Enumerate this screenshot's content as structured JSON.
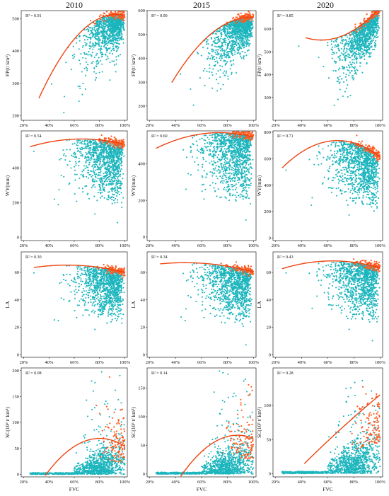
{
  "figure": {
    "column_titles": [
      "2010",
      "2015",
      "2020"
    ],
    "xlabel": "FVC",
    "colors": {
      "scatter_main": "#1cb5bd",
      "scatter_highlight": "#ff5a1f",
      "fit_line": "#ee4411",
      "frame": "#222222"
    }
  },
  "chart_data": [
    {
      "type": "scatter",
      "row": "FP",
      "year": "2010",
      "ylabel": "FP(t/ km²)",
      "r2_label": "R² = 0.91",
      "xlim": [
        18,
        102
      ],
      "ylim": [
        185,
        525
      ],
      "xticks": [
        "20%",
        "40%",
        "60%",
        "80%",
        "100%"
      ],
      "yticks": [
        200,
        300,
        400,
        500
      ],
      "scatter_mode": "up",
      "fit_x": [
        32,
        100
      ],
      "fit_coeffs": [
        -0.0695,
        12.95,
        -90
      ],
      "scatter_center_y": 390,
      "scatter_spread_y": 60
    },
    {
      "type": "scatter",
      "row": "FP",
      "year": "2015",
      "ylabel": "FP(t/ km²)",
      "r2_label": "R² = 0.90",
      "xlim": [
        18,
        102
      ],
      "ylim": [
        140,
        600
      ],
      "xticks": [
        "20%",
        "40%",
        "60%",
        "80%",
        "100%"
      ],
      "yticks": [
        200,
        300,
        400,
        500,
        600
      ],
      "scatter_mode": "up",
      "fit_x": [
        37,
        100
      ],
      "fit_coeffs": [
        -0.0735,
        14.42,
        -135
      ],
      "scatter_center_y": 430,
      "scatter_spread_y": 80
    },
    {
      "type": "scatter",
      "row": "FP",
      "year": "2020",
      "ylabel": "FP(t/ km²)",
      "r2_label": "R² = 0.85",
      "xlim": [
        18,
        102
      ],
      "ylim": [
        200,
        680
      ],
      "xticks": [
        "20%",
        "40%",
        "60%",
        "80%",
        "100%"
      ],
      "yticks": [
        300,
        400,
        500,
        600
      ],
      "scatter_mode": "up",
      "fit_x": [
        43,
        100
      ],
      "fit_coeffs": [
        0.0706,
        -7.77,
        765
      ],
      "scatter_center_y": 500,
      "scatter_spread_y": 80
    },
    {
      "type": "scatter",
      "row": "WY",
      "year": "2010",
      "ylabel": "WY(mm)",
      "r2_label": "R² = 0.54",
      "xlim": [
        18,
        102
      ],
      "ylim": [
        -20,
        615
      ],
      "xticks": [
        "20%",
        "40%",
        "60%",
        "80%",
        "100%"
      ],
      "yticks": [
        0,
        200,
        400
      ],
      "scatter_mode": "down",
      "fit_x": [
        25,
        100
      ],
      "fit_coeffs": [
        -0.0267,
        3.523,
        452
      ],
      "scatter_center_y": 300,
      "scatter_spread_y": 110
    },
    {
      "type": "scatter",
      "row": "WY",
      "year": "2015",
      "ylabel": "WY(mm)",
      "r2_label": "R² = 0.60",
      "xlim": [
        18,
        102
      ],
      "ylim": [
        -20,
        580
      ],
      "xticks": [
        "20%",
        "40%",
        "60%",
        "80%",
        "100%"
      ],
      "yticks": [
        0,
        200,
        400
      ],
      "scatter_mode": "down",
      "fit_x": [
        25,
        100
      ],
      "fit_coeffs": [
        -0.0358,
        5.29,
        375
      ],
      "scatter_center_y": 300,
      "scatter_spread_y": 110
    },
    {
      "type": "scatter",
      "row": "WY",
      "year": "2020",
      "ylabel": "WY(mm)",
      "r2_label": "R² = 0.71",
      "xlim": [
        18,
        102
      ],
      "ylim": [
        -20,
        810
      ],
      "xticks": [
        "20%",
        "40%",
        "60%",
        "80%",
        "100%"
      ],
      "yticks": [
        0,
        200,
        400,
        600,
        800
      ],
      "scatter_mode": "down",
      "fit_x": [
        25,
        100
      ],
      "fit_coeffs": [
        -0.115,
        15.51,
        214
      ],
      "scatter_center_y": 400,
      "scatter_spread_y": 150
    },
    {
      "type": "scatter",
      "row": "LA",
      "year": "2010",
      "ylabel": "LA",
      "r2_label": "R² = 0.30",
      "xlim": [
        18,
        102
      ],
      "ylim": [
        -2,
        75
      ],
      "xticks": [
        "20%",
        "40%",
        "60%",
        "80%",
        "100%"
      ],
      "yticks": [
        0,
        20,
        40,
        60
      ],
      "scatter_mode": "down",
      "fit_x": [
        28,
        100
      ],
      "fit_coeffs": [
        -0.0025,
        0.271,
        58
      ],
      "scatter_center_y": 38,
      "scatter_spread_y": 13
    },
    {
      "type": "scatter",
      "row": "LA",
      "year": "2015",
      "ylabel": "LA",
      "r2_label": "R² = 0.34",
      "xlim": [
        18,
        102
      ],
      "ylim": [
        -2,
        75
      ],
      "xticks": [
        "20%",
        "40%",
        "60%",
        "80%",
        "100%"
      ],
      "yticks": [
        0,
        20,
        40,
        60
      ],
      "scatter_mode": "down",
      "fit_x": [
        28,
        100
      ],
      "fit_coeffs": [
        -0.0024,
        0.226,
        61.8
      ],
      "scatter_center_y": 38,
      "scatter_spread_y": 13
    },
    {
      "type": "scatter",
      "row": "LA",
      "year": "2020",
      "ylabel": "LA",
      "r2_label": "R² = 0.43",
      "xlim": [
        18,
        102
      ],
      "ylim": [
        -2,
        75
      ],
      "xticks": [
        "20%",
        "40%",
        "60%",
        "80%",
        "100%"
      ],
      "yticks": [
        0,
        20,
        40,
        60
      ],
      "scatter_mode": "down",
      "fit_x": [
        25,
        100
      ],
      "fit_coeffs": [
        -0.0038,
        0.484,
        53
      ],
      "scatter_center_y": 38,
      "scatter_spread_y": 13
    },
    {
      "type": "scatter",
      "row": "SC",
      "year": "2010",
      "ylabel": "SC(10³ t/ km²)",
      "r2_label": "R² = 0.08",
      "xlim": [
        18,
        102
      ],
      "ylim": [
        -5,
        205
      ],
      "xticks": [
        "20%",
        "40%",
        "60%",
        "80%",
        "100%"
      ],
      "yticks": [
        0,
        50,
        100,
        150,
        200
      ],
      "scatter_mode": "sc",
      "fit_x": [
        37,
        100
      ],
      "fit_coeffs": [
        -0.0385,
        6.17,
        -178
      ],
      "scatter_center_y": 5,
      "scatter_spread_y": 10
    },
    {
      "type": "scatter",
      "row": "SC",
      "year": "2015",
      "ylabel": "SC(10³ t/ km²)",
      "r2_label": "R² = 0.14",
      "xlim": [
        18,
        102
      ],
      "ylim": [
        -5,
        185
      ],
      "xticks": [
        "20%",
        "40%",
        "60%",
        "80%",
        "100%"
      ],
      "yticks": [
        0,
        50,
        100,
        150
      ],
      "scatter_mode": "sc",
      "fit_x": [
        42,
        100
      ],
      "fit_coeffs": [
        -0.0374,
        6.56,
        -220
      ],
      "scatter_center_y": 5,
      "scatter_spread_y": 10
    },
    {
      "type": "scatter",
      "row": "SC",
      "year": "2020",
      "ylabel": "SC(10³ t/ km²)",
      "r2_label": "R² = 0.28",
      "xlim": [
        18,
        102
      ],
      "ylim": [
        -5,
        155
      ],
      "xticks": [
        "20%",
        "40%",
        "60%",
        "80%",
        "100%"
      ],
      "yticks": [
        0,
        50,
        100
      ],
      "scatter_mode": "sc",
      "fit_x": [
        42,
        100
      ],
      "fit_coeffs": [
        -0.0027,
        2.124,
        -70
      ],
      "scatter_center_y": 5,
      "scatter_spread_y": 10
    }
  ]
}
